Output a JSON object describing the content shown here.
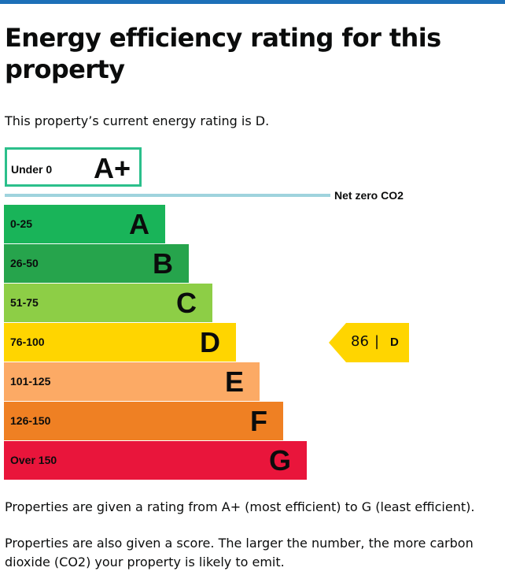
{
  "page": {
    "title": "Energy efficiency rating for this property",
    "intro": "This property’s current energy rating is D."
  },
  "aplus": {
    "range": "Under 0",
    "letter": "A+",
    "border_color": "#2bbf8b"
  },
  "net_zero": {
    "label": "Net zero CO2",
    "line_color": "#9fd3dd"
  },
  "bands": [
    {
      "range": "0-25",
      "letter": "A",
      "color": "#19b459"
    },
    {
      "range": "26-50",
      "letter": "B",
      "color": "#26a44c"
    },
    {
      "range": "51-75",
      "letter": "C",
      "color": "#8dce46"
    },
    {
      "range": "76-100",
      "letter": "D",
      "color": "#ffd500"
    },
    {
      "range": "101-125",
      "letter": "E",
      "color": "#fcaa65"
    },
    {
      "range": "126-150",
      "letter": "F",
      "color": "#ef8023"
    },
    {
      "range": "Over 150",
      "letter": "G",
      "color": "#e9153b"
    }
  ],
  "current": {
    "score": "86",
    "separator": "|",
    "letter": "D",
    "color": "#ffd500"
  },
  "footer": {
    "p1": "Properties are given a rating from A+ (most efficient) to G (least efficient).",
    "p2": "Properties are also given a score. The larger the number, the more carbon dioxide (CO2) your property is likely to emit."
  }
}
